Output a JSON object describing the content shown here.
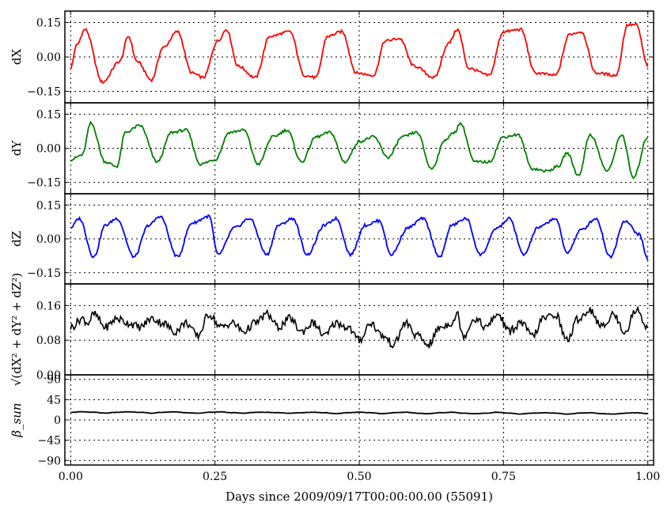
{
  "chart_data": [
    {
      "type": "line",
      "ylabel": "dX",
      "ylim": [
        -0.2,
        0.2
      ],
      "yticks": [
        -0.15,
        0.0,
        0.15
      ],
      "ytick_labels": [
        "−0.15",
        "0.00",
        "0.15"
      ],
      "color": "#ff0000",
      "grid": true,
      "series": [
        {
          "x": [
            0.0,
            0.01,
            0.025,
            0.055,
            0.085,
            0.1,
            0.115,
            0.14,
            0.16,
            0.185,
            0.21,
            0.23,
            0.255,
            0.27,
            0.29,
            0.32,
            0.345,
            0.38,
            0.405,
            0.425,
            0.445,
            0.47,
            0.495,
            0.525,
            0.545,
            0.57,
            0.595,
            0.63,
            0.655,
            0.67,
            0.69,
            0.725,
            0.75,
            0.78,
            0.805,
            0.84,
            0.865,
            0.885,
            0.91,
            0.945,
            0.965,
            0.98,
            1.0
          ],
          "values": [
            -0.05,
            0.05,
            0.12,
            -0.11,
            -0.02,
            0.09,
            -0.02,
            -0.1,
            0.04,
            0.11,
            -0.07,
            -0.09,
            0.07,
            0.12,
            -0.04,
            -0.09,
            0.09,
            0.11,
            -0.08,
            -0.09,
            0.09,
            0.11,
            -0.07,
            -0.08,
            0.07,
            0.08,
            -0.04,
            -0.09,
            0.06,
            0.12,
            -0.05,
            -0.08,
            0.11,
            0.12,
            -0.07,
            -0.08,
            0.1,
            0.11,
            -0.07,
            -0.08,
            0.14,
            0.14,
            -0.04
          ]
        }
      ]
    },
    {
      "type": "line",
      "ylabel": "dY",
      "ylim": [
        -0.2,
        0.2
      ],
      "yticks": [
        -0.15,
        0.0,
        0.15
      ],
      "ytick_labels": [
        "−0.15",
        "0.00",
        "0.15"
      ],
      "color": "#008000",
      "grid": true,
      "series": [
        {
          "x": [
            0.0,
            0.02,
            0.035,
            0.06,
            0.08,
            0.095,
            0.12,
            0.15,
            0.175,
            0.2,
            0.225,
            0.25,
            0.275,
            0.3,
            0.325,
            0.35,
            0.375,
            0.4,
            0.425,
            0.45,
            0.475,
            0.5,
            0.525,
            0.55,
            0.575,
            0.6,
            0.625,
            0.65,
            0.665,
            0.675,
            0.7,
            0.725,
            0.75,
            0.775,
            0.8,
            0.825,
            0.845,
            0.86,
            0.88,
            0.9,
            0.93,
            0.955,
            0.975,
            1.0
          ],
          "values": [
            -0.05,
            -0.03,
            0.11,
            -0.06,
            -0.08,
            0.07,
            0.1,
            -0.06,
            0.07,
            0.08,
            -0.07,
            -0.05,
            0.07,
            0.08,
            -0.07,
            0.05,
            0.08,
            -0.06,
            0.05,
            0.07,
            -0.06,
            0.03,
            0.05,
            -0.04,
            0.05,
            0.07,
            -0.09,
            0.04,
            0.07,
            0.11,
            -0.06,
            -0.06,
            0.05,
            0.06,
            -0.09,
            -0.1,
            -0.08,
            -0.02,
            -0.12,
            0.06,
            -0.1,
            0.06,
            -0.13,
            0.05
          ]
        }
      ]
    },
    {
      "type": "line",
      "ylabel": "dZ",
      "ylim": [
        -0.2,
        0.2
      ],
      "yticks": [
        -0.15,
        0.0,
        0.15
      ],
      "ytick_labels": [
        "−0.15",
        "0.00",
        "0.15"
      ],
      "color": "#0000ff",
      "grid": true,
      "series": [
        {
          "x": [
            0.0,
            0.015,
            0.04,
            0.06,
            0.08,
            0.11,
            0.135,
            0.155,
            0.185,
            0.21,
            0.24,
            0.255,
            0.285,
            0.31,
            0.34,
            0.36,
            0.385,
            0.41,
            0.44,
            0.46,
            0.485,
            0.51,
            0.535,
            0.555,
            0.585,
            0.61,
            0.64,
            0.66,
            0.685,
            0.71,
            0.74,
            0.76,
            0.785,
            0.81,
            0.84,
            0.86,
            0.885,
            0.91,
            0.935,
            0.96,
            0.985,
            1.0
          ],
          "values": [
            0.05,
            0.09,
            -0.08,
            0.06,
            0.09,
            -0.08,
            0.06,
            0.1,
            -0.08,
            0.07,
            0.1,
            -0.07,
            0.05,
            0.09,
            -0.07,
            0.06,
            0.09,
            -0.07,
            0.06,
            0.09,
            -0.07,
            0.06,
            0.08,
            -0.07,
            0.05,
            0.09,
            -0.08,
            0.06,
            0.09,
            -0.07,
            0.05,
            0.09,
            -0.07,
            0.05,
            0.09,
            -0.06,
            0.04,
            0.09,
            -0.08,
            0.08,
            0.02,
            -0.09
          ]
        }
      ]
    },
    {
      "type": "line",
      "ylabel": "√(dX² + dY² + dZ²)",
      "ylim": [
        0,
        0.21
      ],
      "yticks": [
        0.0,
        0.08,
        0.16
      ],
      "ytick_labels": [
        "0.00",
        "0.08",
        "0.16"
      ],
      "color": "#000000",
      "grid": true,
      "series": [
        {
          "x": [
            0.0,
            0.02,
            0.03,
            0.04,
            0.06,
            0.08,
            0.1,
            0.12,
            0.14,
            0.16,
            0.18,
            0.2,
            0.22,
            0.24,
            0.26,
            0.28,
            0.3,
            0.32,
            0.34,
            0.36,
            0.38,
            0.4,
            0.42,
            0.44,
            0.46,
            0.48,
            0.5,
            0.52,
            0.54,
            0.56,
            0.58,
            0.6,
            0.62,
            0.64,
            0.66,
            0.67,
            0.68,
            0.7,
            0.72,
            0.74,
            0.76,
            0.78,
            0.8,
            0.82,
            0.84,
            0.86,
            0.88,
            0.9,
            0.92,
            0.94,
            0.96,
            0.98,
            1.0
          ],
          "values": [
            0.11,
            0.13,
            0.12,
            0.14,
            0.11,
            0.13,
            0.12,
            0.11,
            0.13,
            0.12,
            0.1,
            0.12,
            0.09,
            0.14,
            0.11,
            0.12,
            0.1,
            0.12,
            0.14,
            0.11,
            0.13,
            0.1,
            0.12,
            0.09,
            0.12,
            0.11,
            0.08,
            0.12,
            0.09,
            0.07,
            0.12,
            0.09,
            0.07,
            0.11,
            0.12,
            0.14,
            0.09,
            0.13,
            0.11,
            0.14,
            0.1,
            0.12,
            0.09,
            0.13,
            0.14,
            0.08,
            0.13,
            0.15,
            0.11,
            0.14,
            0.1,
            0.15,
            0.11
          ]
        }
      ]
    },
    {
      "type": "line",
      "ylabel": "β_sun",
      "ylim": [
        -100,
        100
      ],
      "yticks": [
        -90,
        -45,
        0,
        45,
        90
      ],
      "ytick_labels": [
        "−90",
        "−45",
        "0",
        "45",
        "90"
      ],
      "color": "#000000",
      "grid": true,
      "series": [
        {
          "x": [
            0.0,
            0.02,
            0.04,
            0.06,
            0.08,
            0.1,
            0.12,
            0.14,
            0.16,
            0.18,
            0.2,
            0.22,
            0.24,
            0.26,
            0.28,
            0.3,
            0.32,
            0.34,
            0.36,
            0.38,
            0.4,
            0.42,
            0.44,
            0.46,
            0.48,
            0.5,
            0.52,
            0.54,
            0.56,
            0.58,
            0.6,
            0.62,
            0.64,
            0.66,
            0.68,
            0.7,
            0.72,
            0.74,
            0.76,
            0.78,
            0.8,
            0.82,
            0.84,
            0.86,
            0.88,
            0.9,
            0.92,
            0.94,
            0.96,
            0.98,
            1.0
          ],
          "values": [
            17,
            18,
            17,
            15,
            17,
            18,
            17,
            15,
            17,
            18,
            16,
            15,
            17,
            18,
            16,
            15,
            17,
            17,
            16,
            15,
            16,
            17,
            16,
            14,
            16,
            17,
            16,
            14,
            16,
            17,
            15,
            14,
            16,
            17,
            15,
            14,
            15,
            17,
            15,
            13,
            15,
            16,
            15,
            13,
            15,
            16,
            14,
            13,
            15,
            16,
            14
          ]
        }
      ]
    }
  ],
  "x_axis": {
    "label": "Days since 2009/09/17T00:00:00.00 (55091)",
    "xlim": [
      -0.01,
      1.01
    ],
    "ticks": [
      0.0,
      0.25,
      0.5,
      0.75,
      1.0
    ],
    "tick_labels": [
      "0.00",
      "0.25",
      "0.50",
      "0.75",
      "1.00"
    ]
  }
}
